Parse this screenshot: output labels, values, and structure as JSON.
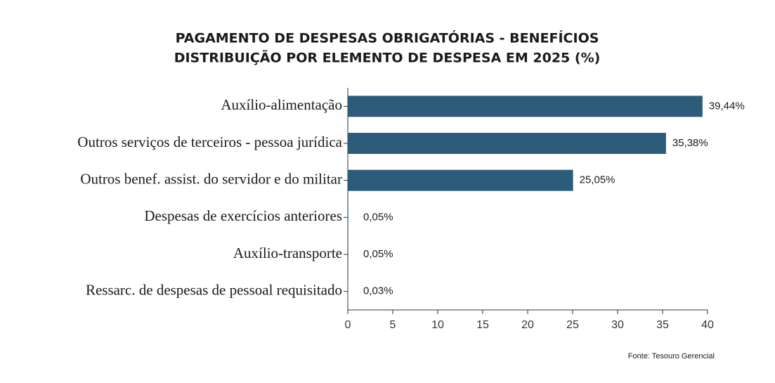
{
  "chart_data": {
    "type": "barh",
    "title": "PAGAMENTO DE DESPESAS OBRIGATÓRIAS - BENEFÍCIOS",
    "subtitle": "DISTRIBUIÇÃO POR ELEMENTO DE DESPESA EM 2025 (%)",
    "categories": [
      "Auxílio-alimentação",
      "Outros serviços de terceiros - pessoa jurídica",
      "Outros benef. assist. do servidor e do militar",
      "Despesas de exercícios anteriores",
      "Auxílio-transporte",
      "Ressarc. de despesas de pessoal requisitado"
    ],
    "values": [
      39.44,
      35.38,
      25.05,
      0.05,
      0.05,
      0.03
    ],
    "value_labels": [
      "39,44%",
      "35,38%",
      "25,05%",
      "0,05%",
      "0,05%",
      "0,03%"
    ],
    "color": "#2d5b7a",
    "xlim": [
      0,
      40
    ],
    "xticks": [
      0,
      5,
      10,
      15,
      20,
      25,
      30,
      35,
      40
    ],
    "source": "Fonte: Tesouro Gerencial"
  }
}
